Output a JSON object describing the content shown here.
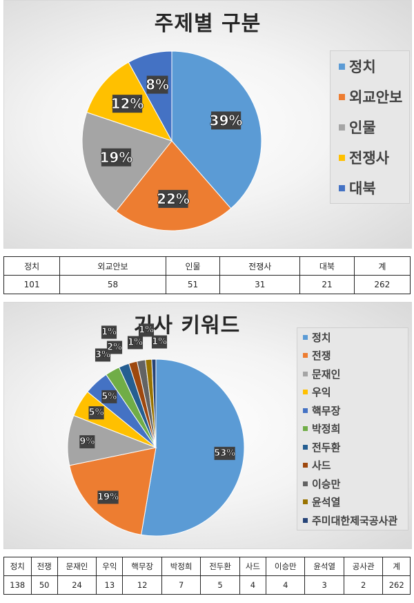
{
  "colors": {
    "blue": "#5b9bd5",
    "orange": "#ed7d31",
    "gray": "#a5a5a5",
    "yellow": "#ffc000",
    "darkblue": "#4472c4",
    "green": "#70ad47",
    "navy": "#255e91",
    "brown": "#9e480e",
    "darkgray": "#636363",
    "olive": "#997300",
    "deepblue": "#264478"
  },
  "chart_data": [
    {
      "type": "pie",
      "title": "주제별 구분",
      "categories": [
        "정치",
        "외교안보",
        "인물",
        "전쟁사",
        "대북"
      ],
      "values": [
        101,
        58,
        51,
        31,
        21
      ],
      "percent_labels": [
        "39%",
        "22%",
        "19%",
        "12%",
        "8%"
      ],
      "colors": [
        "#5b9bd5",
        "#ed7d31",
        "#a5a5a5",
        "#ffc000",
        "#4472c4"
      ],
      "legend_position": "right"
    },
    {
      "type": "pie",
      "title": "기사 키워드",
      "categories": [
        "정치",
        "전쟁",
        "문재인",
        "우익",
        "핵무장",
        "박정희",
        "전두환",
        "사드",
        "이승만",
        "윤석열",
        "주미대한제국공사관"
      ],
      "values": [
        138,
        50,
        24,
        13,
        12,
        7,
        5,
        4,
        4,
        3,
        2
      ],
      "percent_labels": [
        "53%",
        "19%",
        "9%",
        "5%",
        "5%",
        "3%",
        "2%",
        "1%",
        "1%",
        "1%",
        "1%"
      ],
      "colors": [
        "#5b9bd5",
        "#ed7d31",
        "#a5a5a5",
        "#ffc000",
        "#4472c4",
        "#70ad47",
        "#255e91",
        "#9e480e",
        "#636363",
        "#997300",
        "#264478"
      ],
      "legend_position": "right"
    }
  ],
  "table1": {
    "headers": [
      "정치",
      "외교안보",
      "인물",
      "전쟁사",
      "대북",
      "계"
    ],
    "values": [
      "101",
      "58",
      "51",
      "31",
      "21",
      "262"
    ]
  },
  "table2": {
    "headers": [
      "정치",
      "전쟁",
      "문재인",
      "우익",
      "핵무장",
      "박정희",
      "전두환",
      "사드",
      "이승만",
      "윤석열",
      "공사관",
      "계"
    ],
    "values": [
      "138",
      "50",
      "24",
      "13",
      "12",
      "7",
      "5",
      "4",
      "4",
      "3",
      "2",
      "262"
    ]
  }
}
